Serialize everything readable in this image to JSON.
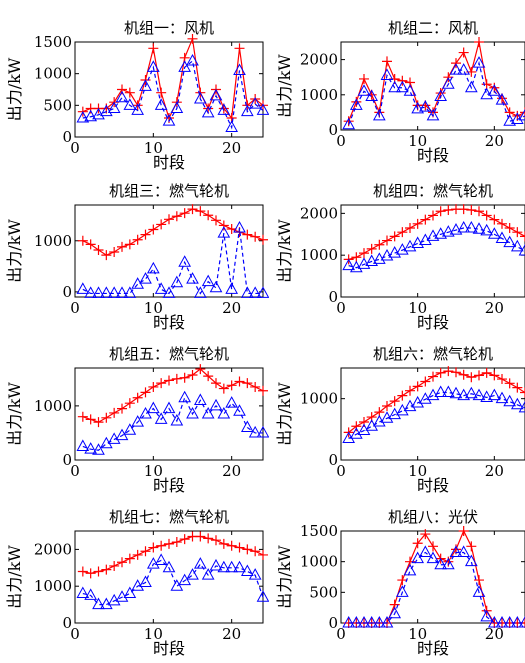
{
  "chart_data": [
    {
      "type": "line",
      "title": "机组一：风机",
      "xlabel": "时段",
      "ylabel": "出力/kW",
      "xlim": [
        0,
        24
      ],
      "ylim": [
        0,
        1500
      ],
      "xticks": [
        "0",
        "10",
        "20"
      ],
      "yticks": [
        "0",
        "500",
        "1000",
        "1500"
      ],
      "x": [
        1,
        2,
        3,
        4,
        5,
        6,
        7,
        8,
        9,
        10,
        11,
        12,
        13,
        14,
        15,
        16,
        17,
        18,
        19,
        20,
        21,
        22,
        23,
        24
      ],
      "series": [
        {
          "marker": "plus",
          "line": "solid",
          "color": "#ff0000",
          "values": [
            400,
            450,
            450,
            450,
            550,
            750,
            700,
            500,
            900,
            1400,
            700,
            300,
            550,
            1250,
            1550,
            700,
            450,
            750,
            450,
            300,
            1400,
            500,
            600,
            500
          ]
        },
        {
          "marker": "triangle",
          "line": "dashed",
          "color": "#0000ff",
          "values": [
            300,
            320,
            350,
            400,
            450,
            620,
            500,
            420,
            800,
            1100,
            500,
            250,
            450,
            1100,
            1200,
            600,
            380,
            650,
            420,
            150,
            1050,
            400,
            520,
            420
          ]
        }
      ]
    },
    {
      "type": "line",
      "title": "机组二：风机",
      "xlabel": "时段",
      "ylabel": "出力/kW",
      "xlim": [
        0,
        24
      ],
      "ylim": [
        0,
        2500
      ],
      "xticks": [
        "0",
        "10",
        "20"
      ],
      "yticks": [
        "0",
        "1000",
        "2000"
      ],
      "x": [
        1,
        2,
        3,
        4,
        5,
        6,
        7,
        8,
        9,
        10,
        11,
        12,
        13,
        14,
        15,
        16,
        17,
        18,
        19,
        20,
        21,
        22,
        23,
        24
      ],
      "series": [
        {
          "marker": "plus",
          "line": "solid",
          "color": "#ff0000",
          "values": [
            250,
            800,
            1450,
            1000,
            500,
            1950,
            1450,
            1400,
            1350,
            700,
            700,
            500,
            1050,
            1500,
            1900,
            2200,
            1650,
            2500,
            1300,
            1200,
            900,
            500,
            400,
            500
          ]
        },
        {
          "marker": "triangle",
          "line": "dashed",
          "color": "#0000ff",
          "values": [
            150,
            700,
            1100,
            950,
            400,
            1550,
            1200,
            1200,
            1100,
            600,
            650,
            400,
            950,
            1300,
            1700,
            1700,
            1200,
            1900,
            1000,
            1100,
            850,
            250,
            300,
            400
          ]
        }
      ]
    },
    {
      "type": "line",
      "title": "机组三：燃气轮机",
      "xlabel": "时段",
      "ylabel": "出力/kW",
      "xlim": [
        0,
        24
      ],
      "ylim": [
        -100,
        1700
      ],
      "xticks": [
        "0",
        "10",
        "20"
      ],
      "yticks": [
        "0",
        "1000"
      ],
      "x": [
        1,
        2,
        3,
        4,
        5,
        6,
        7,
        8,
        9,
        10,
        11,
        12,
        13,
        14,
        15,
        16,
        17,
        18,
        19,
        20,
        21,
        22,
        23,
        24
      ],
      "series": [
        {
          "marker": "plus",
          "line": "solid",
          "color": "#ff0000",
          "values": [
            1000,
            930,
            820,
            720,
            780,
            880,
            930,
            1020,
            1120,
            1220,
            1320,
            1420,
            1480,
            1540,
            1620,
            1580,
            1500,
            1400,
            1300,
            1230,
            1170,
            1120,
            1080,
            1020
          ]
        },
        {
          "marker": "triangle",
          "line": "dashed",
          "color": "#0000ff",
          "values": [
            50,
            -30,
            -30,
            -30,
            -30,
            -30,
            -30,
            150,
            250,
            450,
            50,
            -30,
            180,
            580,
            250,
            -30,
            200,
            80,
            1150,
            50,
            1250,
            -30,
            -30,
            -30
          ]
        }
      ]
    },
    {
      "type": "line",
      "title": "机组四：燃气轮机",
      "xlabel": "时段",
      "ylabel": "出力/kW",
      "xlim": [
        0,
        24
      ],
      "ylim": [
        0,
        2200
      ],
      "xticks": [
        "0",
        "10",
        "20"
      ],
      "yticks": [
        "0",
        "1000",
        "2000"
      ],
      "x": [
        1,
        2,
        3,
        4,
        5,
        6,
        7,
        8,
        9,
        10,
        11,
        12,
        13,
        14,
        15,
        16,
        17,
        18,
        19,
        20,
        21,
        22,
        23,
        24
      ],
      "series": [
        {
          "marker": "plus",
          "line": "solid",
          "color": "#ff0000",
          "values": [
            900,
            950,
            1050,
            1150,
            1250,
            1350,
            1450,
            1550,
            1650,
            1750,
            1850,
            1950,
            2050,
            2080,
            2100,
            2100,
            2080,
            2050,
            1950,
            1850,
            1750,
            1650,
            1550,
            1450
          ]
        },
        {
          "marker": "triangle",
          "line": "dashed",
          "color": "#0000ff",
          "values": [
            750,
            700,
            780,
            850,
            900,
            980,
            1050,
            1120,
            1200,
            1280,
            1350,
            1450,
            1500,
            1550,
            1600,
            1650,
            1650,
            1620,
            1580,
            1500,
            1400,
            1300,
            1200,
            1100
          ]
        }
      ]
    },
    {
      "type": "line",
      "title": "机组五：燃气轮机",
      "xlabel": "时段",
      "ylabel": "出力/kW",
      "xlim": [
        0,
        24
      ],
      "ylim": [
        0,
        1700
      ],
      "xticks": [
        "0",
        "10",
        "20"
      ],
      "yticks": [
        "0",
        "1000"
      ],
      "x": [
        1,
        2,
        3,
        4,
        5,
        6,
        7,
        8,
        9,
        10,
        11,
        12,
        13,
        14,
        15,
        16,
        17,
        18,
        19,
        20,
        21,
        22,
        23,
        24
      ],
      "series": [
        {
          "marker": "plus",
          "line": "solid",
          "color": "#ff0000",
          "values": [
            800,
            750,
            700,
            780,
            870,
            950,
            1050,
            1150,
            1250,
            1350,
            1420,
            1470,
            1500,
            1520,
            1570,
            1680,
            1550,
            1420,
            1320,
            1380,
            1450,
            1420,
            1350,
            1280
          ]
        },
        {
          "marker": "triangle",
          "line": "dashed",
          "color": "#0000ff",
          "values": [
            250,
            200,
            180,
            300,
            380,
            450,
            550,
            700,
            850,
            950,
            750,
            950,
            720,
            1150,
            850,
            1100,
            850,
            1000,
            850,
            1050,
            900,
            600,
            500,
            500
          ]
        }
      ]
    },
    {
      "type": "line",
      "title": "机组六：燃气轮机",
      "xlabel": "时段",
      "ylabel": "出力/kW",
      "xlim": [
        0,
        24
      ],
      "ylim": [
        0,
        1500
      ],
      "xticks": [
        "0",
        "10",
        "20"
      ],
      "yticks": [
        "0",
        "1000"
      ],
      "x": [
        1,
        2,
        3,
        4,
        5,
        6,
        7,
        8,
        9,
        10,
        11,
        12,
        13,
        14,
        15,
        16,
        17,
        18,
        19,
        20,
        21,
        22,
        23,
        24
      ],
      "series": [
        {
          "marker": "plus",
          "line": "solid",
          "color": "#ff0000",
          "values": [
            450,
            550,
            620,
            700,
            780,
            880,
            960,
            1050,
            1130,
            1200,
            1280,
            1360,
            1420,
            1450,
            1430,
            1390,
            1350,
            1380,
            1420,
            1380,
            1320,
            1250,
            1180,
            1100
          ]
        },
        {
          "marker": "triangle",
          "line": "dashed",
          "color": "#0000ff",
          "values": [
            350,
            420,
            480,
            550,
            620,
            680,
            740,
            800,
            870,
            930,
            990,
            1050,
            1100,
            1100,
            1080,
            1050,
            1080,
            1050,
            1020,
            1050,
            1000,
            950,
            900,
            850
          ]
        }
      ]
    },
    {
      "type": "line",
      "title": "机组七：燃气轮机",
      "xlabel": "时段",
      "ylabel": "出力/kW",
      "xlim": [
        0,
        24
      ],
      "ylim": [
        0,
        2500
      ],
      "xticks": [
        "0",
        "10",
        "20"
      ],
      "yticks": [
        "0",
        "1000",
        "2000"
      ],
      "x": [
        1,
        2,
        3,
        4,
        5,
        6,
        7,
        8,
        9,
        10,
        11,
        12,
        13,
        14,
        15,
        16,
        17,
        18,
        19,
        20,
        21,
        22,
        23,
        24
      ],
      "series": [
        {
          "marker": "plus",
          "line": "solid",
          "color": "#ff0000",
          "values": [
            1400,
            1350,
            1400,
            1450,
            1550,
            1650,
            1750,
            1850,
            1950,
            2050,
            2100,
            2150,
            2200,
            2280,
            2350,
            2350,
            2300,
            2250,
            2150,
            2100,
            2050,
            2000,
            1950,
            1850
          ]
        },
        {
          "marker": "triangle",
          "line": "dashed",
          "color": "#0000ff",
          "values": [
            800,
            750,
            500,
            500,
            600,
            700,
            800,
            1000,
            1100,
            1600,
            1700,
            1500,
            1000,
            1150,
            1300,
            1600,
            1300,
            1550,
            1500,
            1500,
            1500,
            1400,
            1300,
            700
          ]
        }
      ]
    },
    {
      "type": "line",
      "title": "机组八：光伏",
      "xlabel": "时段",
      "ylabel": "出力/kW",
      "xlim": [
        0,
        24
      ],
      "ylim": [
        0,
        1500
      ],
      "xticks": [
        "0",
        "10",
        "20"
      ],
      "yticks": [
        "0",
        "500",
        "1000",
        "1500"
      ],
      "x": [
        1,
        2,
        3,
        4,
        5,
        6,
        7,
        8,
        9,
        10,
        11,
        12,
        13,
        14,
        15,
        16,
        17,
        18,
        19,
        20,
        21,
        22,
        23,
        24
      ],
      "series": [
        {
          "marker": "plus",
          "line": "solid",
          "color": "#ff0000",
          "values": [
            0,
            0,
            0,
            0,
            0,
            0,
            300,
            700,
            1000,
            1300,
            1450,
            1250,
            1050,
            1000,
            1200,
            1500,
            1250,
            700,
            200,
            0,
            0,
            0,
            0,
            0
          ]
        },
        {
          "marker": "triangle",
          "line": "dashed",
          "color": "#0000ff",
          "values": [
            0,
            0,
            0,
            0,
            0,
            0,
            150,
            500,
            850,
            1050,
            1150,
            1050,
            950,
            950,
            1150,
            1150,
            1000,
            500,
            100,
            0,
            0,
            0,
            0,
            0
          ]
        }
      ]
    }
  ]
}
